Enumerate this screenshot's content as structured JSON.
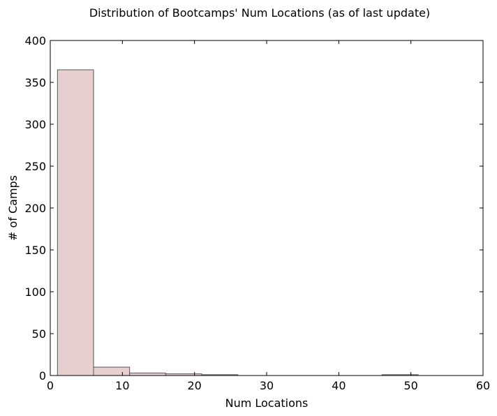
{
  "chart_data": {
    "type": "bar",
    "title": "Distribution of Bootcamps' Num Locations (as of last update)",
    "xlabel": "Num Locations",
    "ylabel": "# of Camps",
    "xlim": [
      0,
      60
    ],
    "ylim": [
      0,
      400
    ],
    "x_ticks": [
      "0",
      "10",
      "20",
      "30",
      "40",
      "50",
      "60"
    ],
    "y_ticks": [
      "0",
      "50",
      "100",
      "150",
      "200",
      "250",
      "300",
      "350",
      "400"
    ],
    "bins": [
      {
        "start": 1,
        "end": 6,
        "value": 365
      },
      {
        "start": 6,
        "end": 11,
        "value": 10
      },
      {
        "start": 11,
        "end": 16,
        "value": 3
      },
      {
        "start": 16,
        "end": 21,
        "value": 2
      },
      {
        "start": 21,
        "end": 26,
        "value": 1
      },
      {
        "start": 26,
        "end": 31,
        "value": 0
      },
      {
        "start": 31,
        "end": 36,
        "value": 0
      },
      {
        "start": 36,
        "end": 41,
        "value": 0
      },
      {
        "start": 41,
        "end": 46,
        "value": 0
      },
      {
        "start": 46,
        "end": 51,
        "value": 1
      }
    ],
    "bar_color": "#E8D0D0",
    "bar_edge_color": "#555555",
    "grid": false,
    "legend": "none"
  }
}
